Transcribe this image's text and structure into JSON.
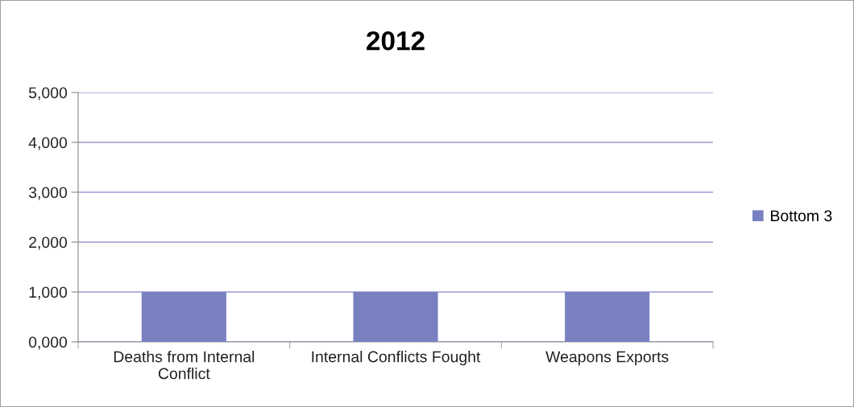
{
  "chart_data": {
    "type": "bar",
    "title": "2012",
    "categories": [
      "Deaths from Internal\nConflict",
      "Internal Conflicts Fought",
      "Weapons Exports"
    ],
    "series": [
      {
        "name": "Bottom 3",
        "color": "#7880c0",
        "values": [
          1000,
          1000,
          1000
        ]
      }
    ],
    "ylim": [
      0,
      5000
    ],
    "yticks": [
      {
        "value": 0,
        "label": "0,000"
      },
      {
        "value": 1000,
        "label": "1,000"
      },
      {
        "value": 2000,
        "label": "2,000"
      },
      {
        "value": 3000,
        "label": "3,000"
      },
      {
        "value": 4000,
        "label": "4,000"
      },
      {
        "value": 5000,
        "label": "5,000"
      }
    ],
    "grid": "y",
    "legend": "right"
  }
}
